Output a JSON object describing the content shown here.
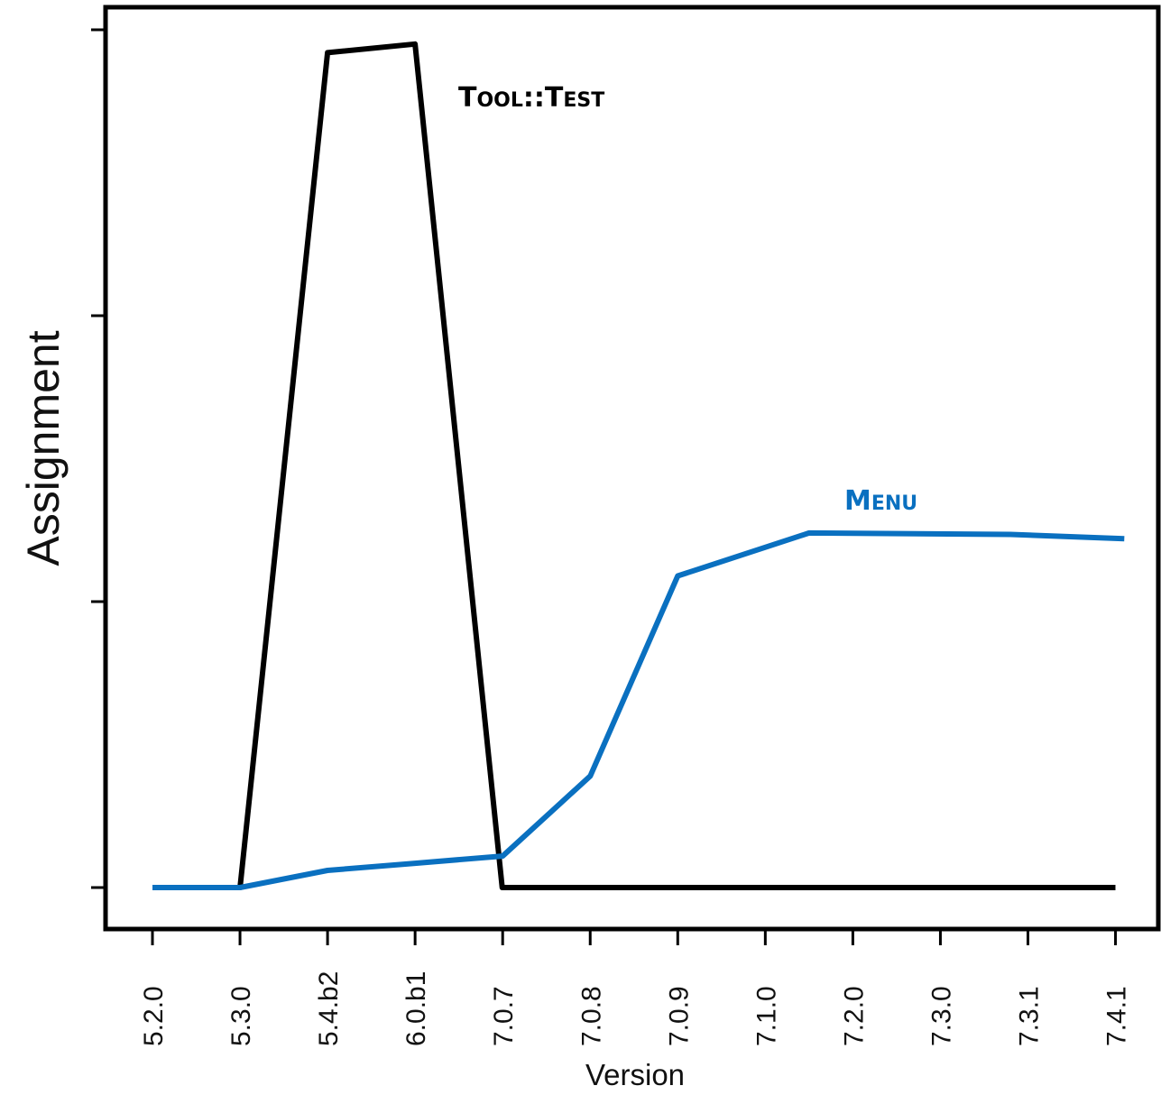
{
  "chart_data": {
    "type": "line",
    "xlabel": "Version",
    "ylabel": "Assignment",
    "categories": [
      "5.2.0",
      "5.3.0",
      "5.4.b2",
      "6.0.b1",
      "7.0.7",
      "7.0.8",
      "7.0.9",
      "7.1.0",
      "7.2.0",
      "7.3.0",
      "7.3.1",
      "7.4.1"
    ],
    "ylim": [
      0,
      3
    ],
    "yticks": [
      0,
      1,
      2,
      3
    ],
    "grid": false,
    "legend": "none",
    "series": [
      {
        "name": "Tool::Test",
        "color": "#000000",
        "x": [
          0,
          1,
          2,
          3,
          3.995,
          5,
          6,
          7,
          8,
          9,
          10,
          11
        ],
        "values": [
          0.0,
          0.0,
          2.92,
          2.95,
          0.0,
          0.0,
          0.0,
          0.0,
          0.0,
          0.0,
          0.0,
          0.0
        ]
      },
      {
        "name": "Menu",
        "color": "#0a70c0",
        "x": [
          0,
          1,
          2,
          3,
          4,
          5,
          6,
          7.5,
          9.8,
          11.1
        ],
        "values": [
          0.0,
          0.0,
          0.06,
          0.085,
          0.11,
          0.39,
          1.09,
          1.24,
          1.235,
          1.22
        ]
      }
    ],
    "annotations": [
      {
        "series": "Tool::Test",
        "first": "T",
        "rest": "OOL",
        "sep": "::",
        "first2": "T",
        "rest2": "EST",
        "color": "#000000"
      },
      {
        "series": "Menu",
        "first": "M",
        "rest": "ENU",
        "color": "#0a70c0"
      }
    ]
  }
}
